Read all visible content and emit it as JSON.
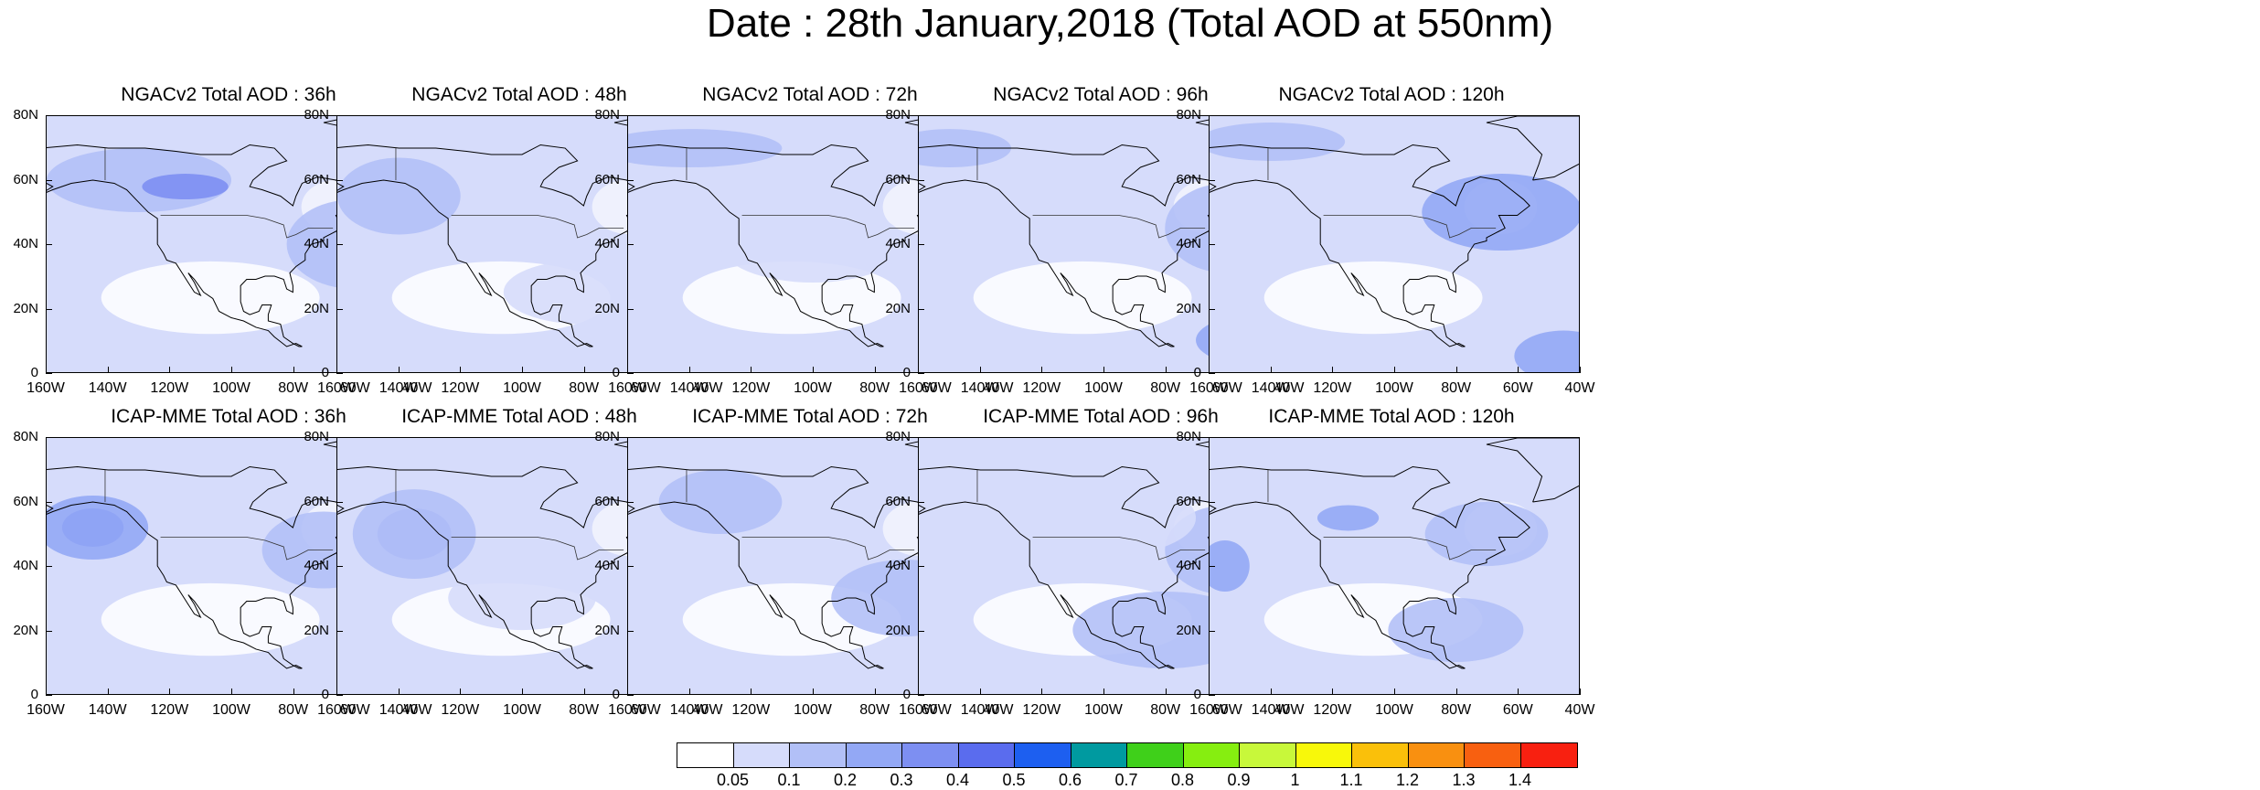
{
  "title": "Date : 28th January,2018 (Total AOD at 550nm)",
  "panels": [
    {
      "title": "NGACv2 Total AOD : 36h"
    },
    {
      "title": "NGACv2 Total AOD : 48h"
    },
    {
      "title": "NGACv2 Total AOD : 72h"
    },
    {
      "title": "NGACv2 Total AOD : 96h"
    },
    {
      "title": "NGACv2 Total AOD : 120h"
    },
    {
      "title": "ICAP-MME Total AOD : 36h"
    },
    {
      "title": "ICAP-MME Total AOD : 48h"
    },
    {
      "title": "ICAP-MME Total AOD : 72h"
    },
    {
      "title": "ICAP-MME Total AOD : 96h"
    },
    {
      "title": "ICAP-MME Total AOD : 120h"
    }
  ],
  "lat_labels": [
    "80N",
    "60N",
    "40N",
    "20N",
    "0"
  ],
  "lon_labels": [
    "160W",
    "140W",
    "120W",
    "100W",
    "80W",
    "60W",
    "40W"
  ],
  "colorbar": {
    "labels": [
      "0.05",
      "0.1",
      "0.2",
      "0.3",
      "0.4",
      "0.5",
      "0.6",
      "0.7",
      "0.8",
      "0.9",
      "1",
      "1.1",
      "1.2",
      "1.3",
      "1.4"
    ],
    "colors": [
      "#ffffff",
      "#d6dcfb",
      "#b2c0f7",
      "#93a8f5",
      "#7d8ff2",
      "#5a6cee",
      "#1d5ff0",
      "#009aa0",
      "#3fd01a",
      "#86ee10",
      "#c8f83a",
      "#f8f80a",
      "#fac00a",
      "#f99010",
      "#f86010",
      "#f82010"
    ]
  }
}
